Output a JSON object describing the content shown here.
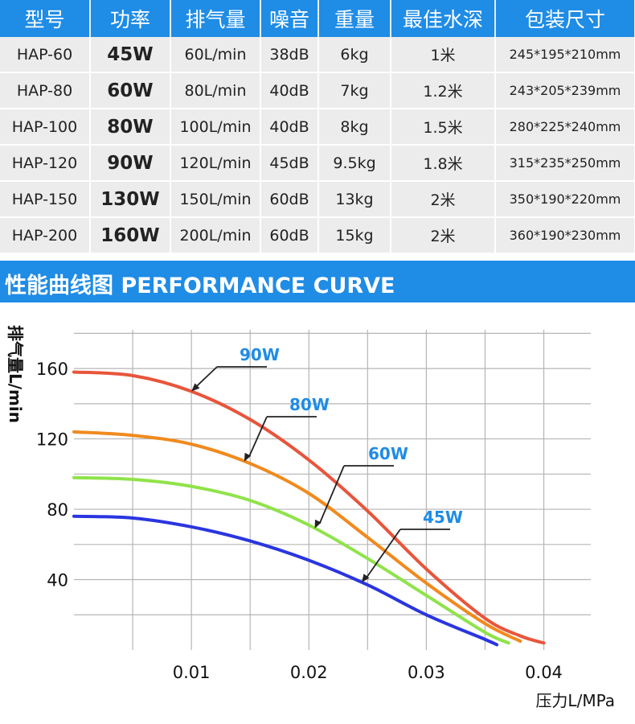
{
  "spec_table": {
    "headers": [
      "型号",
      "功率",
      "排气量",
      "噪音",
      "重量",
      "最佳水深",
      "包装尺寸"
    ],
    "rows": [
      [
        "HAP-60",
        "45W",
        "60L/min",
        "38dB",
        "6kg",
        "1米",
        "245*195*210mm"
      ],
      [
        "HAP-80",
        "60W",
        "80L/min",
        "40dB",
        "7kg",
        "1.2米",
        "243*205*239mm"
      ],
      [
        "HAP-100",
        "80W",
        "100L/min",
        "40dB",
        "8kg",
        "1.5米",
        "280*225*240mm"
      ],
      [
        "HAP-120",
        "90W",
        "120L/min",
        "45dB",
        "9.5kg",
        "1.8米",
        "315*235*250mm"
      ],
      [
        "HAP-150",
        "130W",
        "150L/min",
        "60dB",
        "13kg",
        "2米",
        "350*190*220mm"
      ],
      [
        "HAP-200",
        "160W",
        "200L/min",
        "60dB",
        "15kg",
        "2米",
        "360*190*230mm"
      ]
    ]
  },
  "banner": {
    "title": "性能曲线图 PERFORMANCE CURVE"
  },
  "colors": {
    "header_bg": "#1f8ce6",
    "label_blue": "#1f8ce6"
  },
  "chart_data": {
    "type": "line",
    "xlabel": "压力L/MPa",
    "ylabel": "排气量L/min",
    "x_ticks": [
      "0.01",
      "0.02",
      "0.03",
      "0.04"
    ],
    "y_ticks": [
      "40",
      "80",
      "120",
      "160"
    ],
    "xlim": [
      0,
      0.044
    ],
    "ylim": [
      0,
      182
    ],
    "grid": true,
    "series": [
      {
        "name": "90W",
        "color": "#e8553b",
        "x": [
          0,
          0.005,
          0.01,
          0.015,
          0.02,
          0.025,
          0.03,
          0.035,
          0.038,
          0.04
        ],
        "values": [
          158,
          156,
          147,
          131,
          108,
          79,
          46,
          18,
          8,
          4
        ]
      },
      {
        "name": "80W",
        "color": "#f08a1e",
        "x": [
          0,
          0.005,
          0.01,
          0.015,
          0.02,
          0.025,
          0.03,
          0.035,
          0.038
        ],
        "values": [
          124,
          122,
          117,
          106,
          89,
          64,
          38,
          15,
          5
        ]
      },
      {
        "name": "60W",
        "color": "#8fe34a",
        "x": [
          0,
          0.005,
          0.01,
          0.015,
          0.02,
          0.025,
          0.03,
          0.035,
          0.037
        ],
        "values": [
          98,
          97,
          93,
          85,
          71,
          52,
          31,
          10,
          4
        ]
      },
      {
        "name": "45W",
        "color": "#2a35e0",
        "x": [
          0,
          0.005,
          0.01,
          0.015,
          0.02,
          0.025,
          0.03,
          0.035,
          0.036
        ],
        "values": [
          76,
          75,
          70,
          62,
          51,
          37,
          20,
          6,
          3
        ]
      }
    ]
  }
}
